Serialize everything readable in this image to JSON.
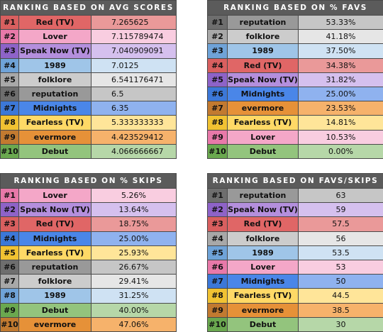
{
  "colors": {
    "Red (TV)": {
      "rank": "#d95f5f",
      "name": "#e06666",
      "val": "#ea9999"
    },
    "Lover": {
      "rank": "#e879a9",
      "name": "#f4a7c8",
      "val": "#f9cde0"
    },
    "Speak Now (TV)": {
      "rank": "#8e63c8",
      "name": "#b48fdd",
      "val": "#d5c0ee"
    },
    "1989": {
      "rank": "#6fa3d8",
      "name": "#9fc5e8",
      "val": "#cfe2f3"
    },
    "folklore": {
      "rank": "#a8a8a8",
      "name": "#cccccc",
      "val": "#e6e6e6"
    },
    "reputation": {
      "rank": "#6e6e6e",
      "name": "#999999",
      "val": "#c6c6c6"
    },
    "Midnights": {
      "rank": "#3c78d8",
      "name": "#4a86e8",
      "val": "#8fb2ef"
    },
    "Fearless (TV)": {
      "rank": "#f1c232",
      "name": "#ffd966",
      "val": "#ffe599"
    },
    "evermore": {
      "rank": "#c27a30",
      "name": "#e69138",
      "val": "#f6b26b"
    },
    "Debut": {
      "rank": "#6aa84f",
      "name": "#93c47d",
      "val": "#b6d7a8"
    }
  },
  "tables": [
    {
      "title": "RANKING BASED ON AVG SCORES",
      "rows": [
        {
          "rank": "#1",
          "name": "Red (TV)",
          "value": "7.265625"
        },
        {
          "rank": "#2",
          "name": "Lover",
          "value": "7.115789474"
        },
        {
          "rank": "#3",
          "name": "Speak Now (TV)",
          "value": "7.040909091"
        },
        {
          "rank": "#4",
          "name": "1989",
          "value": "7.0125"
        },
        {
          "rank": "#5",
          "name": "folklore",
          "value": "6.541176471"
        },
        {
          "rank": "#6",
          "name": "reputation",
          "value": "6.5"
        },
        {
          "rank": "#7",
          "name": "Midnights",
          "value": "6.35"
        },
        {
          "rank": "#8",
          "name": "Fearless (TV)",
          "value": "5.333333333"
        },
        {
          "rank": "#9",
          "name": "evermore",
          "value": "4.423529412"
        },
        {
          "rank": "#10",
          "name": "Debut",
          "value": "4.066666667"
        }
      ]
    },
    {
      "title": "RANKING BASED ON % FAVS",
      "rows": [
        {
          "rank": "#1",
          "name": "reputation",
          "value": "53.33%"
        },
        {
          "rank": "#2",
          "name": "folklore",
          "value": "41.18%"
        },
        {
          "rank": "#3",
          "name": "1989",
          "value": "37.50%"
        },
        {
          "rank": "#4",
          "name": "Red (TV)",
          "value": "34.38%"
        },
        {
          "rank": "#5",
          "name": "Speak Now (TV)",
          "value": "31.82%"
        },
        {
          "rank": "#6",
          "name": "Midnights",
          "value": "25.00%"
        },
        {
          "rank": "#7",
          "name": "evermore",
          "value": "23.53%"
        },
        {
          "rank": "#8",
          "name": "Fearless (TV)",
          "value": "14.81%"
        },
        {
          "rank": "#9",
          "name": "Lover",
          "value": "10.53%"
        },
        {
          "rank": "#10",
          "name": "Debut",
          "value": "0.00%"
        }
      ]
    },
    {
      "title": "RANKING BASED ON % SKIPS",
      "rows": [
        {
          "rank": "#1",
          "name": "Lover",
          "value": "5.26%"
        },
        {
          "rank": "#2",
          "name": "Speak Now (TV)",
          "value": "13.64%"
        },
        {
          "rank": "#3",
          "name": "Red (TV)",
          "value": "18.75%"
        },
        {
          "rank": "#4",
          "name": "Midnights",
          "value": "25.00%"
        },
        {
          "rank": "#5",
          "name": "Fearless (TV)",
          "value": "25.93%"
        },
        {
          "rank": "#6",
          "name": "reputation",
          "value": "26.67%"
        },
        {
          "rank": "#7",
          "name": "folklore",
          "value": "29.41%"
        },
        {
          "rank": "#8",
          "name": "1989",
          "value": "31.25%"
        },
        {
          "rank": "#9",
          "name": "Debut",
          "value": "40.00%"
        },
        {
          "rank": "#10",
          "name": "evermore",
          "value": "47.06%"
        }
      ]
    },
    {
      "title": "RANKING BASED ON FAVS/SKIPS",
      "rows": [
        {
          "rank": "#1",
          "name": "reputation",
          "value": "63"
        },
        {
          "rank": "#2",
          "name": "Speak Now (TV)",
          "value": "59"
        },
        {
          "rank": "#3",
          "name": "Red (TV)",
          "value": "57.5"
        },
        {
          "rank": "#4",
          "name": "folklore",
          "value": "56"
        },
        {
          "rank": "#5",
          "name": "1989",
          "value": "53.5"
        },
        {
          "rank": "#6",
          "name": "Lover",
          "value": "53"
        },
        {
          "rank": "#7",
          "name": "Midnights",
          "value": "50"
        },
        {
          "rank": "#8",
          "name": "Fearless (TV)",
          "value": "44.5"
        },
        {
          "rank": "#9",
          "name": "evermore",
          "value": "38.5"
        },
        {
          "rank": "#10",
          "name": "Debut",
          "value": "30"
        }
      ]
    }
  ]
}
